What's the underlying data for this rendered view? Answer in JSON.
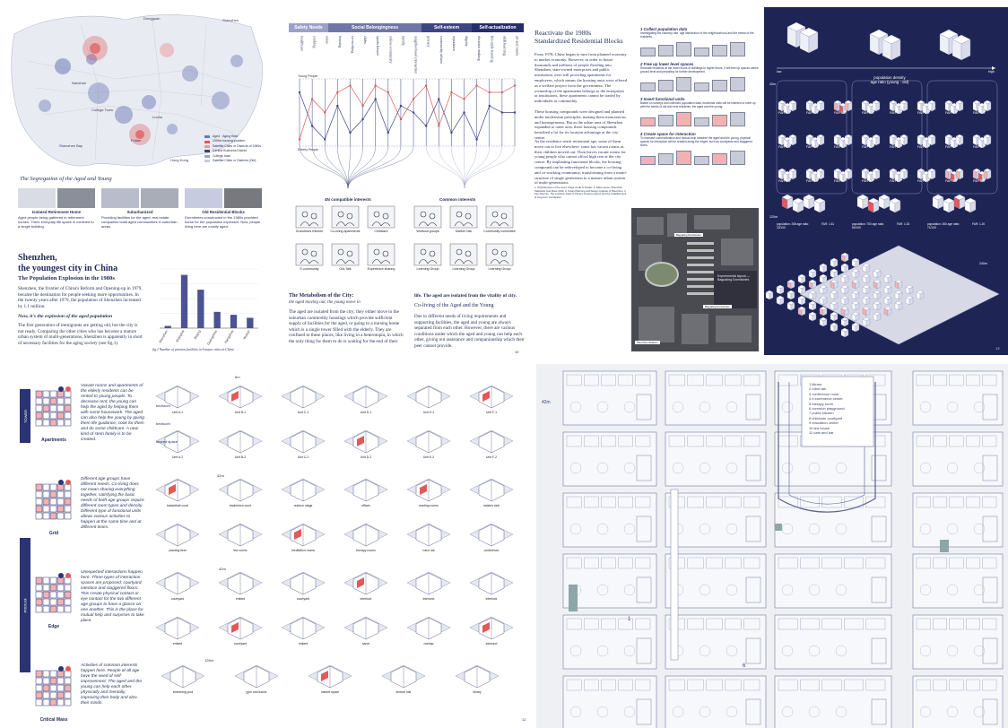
{
  "top_left": {
    "map_labels": [
      "Dongguan",
      "Shenzhen",
      "Nanshan",
      "Futian",
      "College Town",
      "Luohu",
      "Shenzhen Bay",
      "Hong Kong"
    ],
    "map_caption": "The Segregation of the Aged and Young",
    "legend": [
      {
        "label": "Aged · Aging Rate",
        "color": "#6e79b6"
      },
      {
        "label": "1990s housing problem",
        "color": "#e05a5a"
      },
      {
        "label": "Satellite Cities or Districts of 1980s",
        "color": "#e79a9a"
      },
      {
        "label": "Central Business District",
        "color": "#3a4273"
      },
      {
        "label": "College town",
        "color": "#9aa2c6"
      },
      {
        "label": "Satellite Cities or Districts (Old)",
        "color": "#c7cbe0"
      }
    ],
    "photo_groups": [
      {
        "title": "Isolated Retirement Home",
        "desc": "Aged people being gathered in retirement homes. There everyday life space is confined to a single building."
      },
      {
        "title": "Suburbanized",
        "desc": "Providing facilities for the aged, real estate companies build aged communities in suburban areas."
      },
      {
        "title": "Old Residential Blocks",
        "desc": "Dormitories constructed in the 1980s provided home for the population explosion. Now, people living here are mostly aged."
      }
    ],
    "section_title_1": "Shenzhen,",
    "section_title_2": "the youngest city in China",
    "sub_title": "The Population Explosion in the 1980s",
    "para1": "Shenzhen, the frontier of China's Reform and Opening-up in 1979, became the destination for people seeking more opportunities. In the twenty years after 1979, the population of Shenzhen increased by 1.1 million.",
    "now_line": "Now, it's the explosion of the aged population",
    "para2": "The first generation of immigrants are getting old, but the city is not ready. Comparing the other cities who has become a mature urban system of multi-generations, Shenzhen is apparently in short of necessary facilities for the aging society (see fig.1).",
    "fig_caption": "fig.1  Number of pension facilities in 6 major cities in China",
    "page_number": "9"
  },
  "bar_chart": {
    "type": "bar",
    "categories": [
      "Shenzhen",
      "Shanghai",
      "Beijing",
      "Guangzhou",
      "Hangzhou",
      "Wuhan"
    ],
    "values": [
      3,
      72,
      52,
      22,
      18,
      14
    ],
    "ylim": [
      0,
      80
    ]
  },
  "top_middle": {
    "needs": [
      "Safety Needs",
      "Social Belongingness",
      "Self-esteem",
      "Self-actualization"
    ],
    "columns": [
      "healthcare",
      "cooking",
      "noise",
      "housing",
      "co-working",
      "clubs",
      "sports leisure",
      "online community",
      "family",
      "neighborhood interaction",
      "privacy",
      "community affairs",
      "reputation",
      "dignity",
      "decision making",
      "life-style learning",
      "skill learning",
      "art and music"
    ],
    "young_label": "Young People",
    "elderly_label": "Elderly People",
    "compat_label": "4N compatible interests",
    "common_label": "Common interests",
    "left_icons": [
      "Grandma's Kitchen",
      "Co-living apartments",
      "Childcare",
      "E-community",
      "Old-Talk",
      "Experience sharing"
    ],
    "right_icons": [
      "Workout groups",
      "Market Talk",
      "Community committee",
      "Learning Group",
      "Learning Group",
      "Learning Group"
    ],
    "meta_title": "The Metabolism of the City:",
    "meta_sub": "the aged moving out, the young move in",
    "meta_body": "The aged are isolated from the city; they either move to the suburban commodity housings which provide sufficient supply of facilities for the aged, or going to a nursing home which is a single tower filled with the elderly. They are confined to these places, like living in a heterotopia, in which the only thing for them to do is waiting for the end of their",
    "life_head": "life. The aged are isolated from the vitality of city.",
    "coliving": "Co-living of the Aged and the Young",
    "life_body": "Due to different needs of living requirements and supporting facilities, the aged and young are always separated from each other. However, there are various conditions under which the aged and young can help each other, giving out assistance and companionship which their peer cannot provide.",
    "page_number": "10"
  },
  "top_right": {
    "title_1": "Reactivate the 1980s",
    "title_2": "Standardized Residential Blocks",
    "p1": "From 1978, China began to turn from planned economy to market economy. However, in order to house thousands and millions of people flooding into Shenzhen, state-owned enterprises and public institutions were still providing apartments for employees, which means the housing units were offered as a welfare project from the government. The ownership of the apartments belongs to the enterprises or institutions, these apartments cannot be traded by individuals as commodity.",
    "p2": "These housing compounds were designed and planned under modernism principles, making them monotonous and homogeneous. But as the urban area of Shenzhen expanded to outer area, these housing compounds benefited a lot for its location advantage at the city centre.",
    "p3": "As the residence reach retirement age, some of them move out to live elsewhere, some has vacant rooms as their children moved out. Then leaves vacant rooms for young people who cannot afford high rent at the city centre. By implanting functional blocks, the housing compound can be redeveloped to become a co-living and co-working community, transforming from a mono-structure of single generation to a mature urban system of multi-generations.",
    "footnotes": "1. Original photo of the cover image credit to Xiaolei. 2. Data source: Shenzhen Statistical Year Book 2016. 3. Urban Planning and Design Institute of Shenzhen. 4. Fan Xiaomin, The evolution track of China's housing system and the establishment of long-term mechanism.",
    "steps": [
      {
        "title": "1  Collect population data",
        "desc": "Investigating the vacancy rate, age distribution of the neighbourhood and the needs of the residents."
      },
      {
        "title": "2  Free up lower level spaces",
        "desc": "Relocate residents at the lower floors of buildings to higher floors. It will free up spaces above ground level and preparing for further development."
      },
      {
        "title": "3  Insert functional units",
        "desc": "Based on surveys and collected population data, functional units will be inserted to meet up with the needs of old and new residents, the aged and the young."
      },
      {
        "title": "4  Create space for interaction",
        "desc": "To increase communication and mutual help between the aged and the young, physical spaces for interaction will be created along the edges, such as courtyards and staggered floors."
      }
    ],
    "aerial_labels": [
      "Bagualing Dormitories",
      "Shenzhen Stadium",
      "Bagualing Dormitories"
    ],
    "aerial_note": "Experimental layout — Bagualing Dormitories",
    "page_number": "11"
  },
  "top_right_dark": {
    "density_low": "low",
    "density_high": "high",
    "density_label": "population density",
    "age_ratio": "age ratio (young : old)",
    "dim_42": "42m",
    "dim_120": "120m",
    "dim_240": "240m",
    "far_rows": [
      [
        "FAR 1.3",
        "FAR 1.3",
        "FAR 1.3",
        "FAR 1.3",
        "FAR 1.3",
        "FAR 1.3",
        "FAR 1.3",
        "FAR 1.3"
      ],
      [
        "FAR 1.1",
        "FAR 1.1",
        "FAR 0.7",
        "FAR 0.7",
        "FAR 0.7",
        "FAR 0.7",
        "FAR 0.7",
        "FAR 0.7"
      ],
      [
        "FAR 0.3",
        "FAR 0.3",
        "FAR 0.7",
        "FAR 0.7",
        "FAR 0.7",
        "FAR 0.7",
        "FAR 0.3",
        "FAR 0.3"
      ]
    ],
    "pop_labels": [
      "population: 258  age ratio: 22/100",
      "FAR: 1.61",
      "population: 700  age ratio: 50/100",
      "FAR: 1.33",
      "population: 260  age ratio: 71/100",
      "FAR: 1.20"
    ],
    "page_number": "13"
  },
  "bottom_left": {
    "categories": [
      {
        "name": "Apartments",
        "tag": "TOWER",
        "desc": "Vacant rooms and apartments of the elderly residents can be rented to young people. To decrease rent, the young can help the aged by helping them with some housework. The aged can also help the young by giving them life guidance, cook for them and do some childcare. A new kind of stem family is to be created."
      },
      {
        "name": "Grid",
        "tag": "",
        "desc": "Different age groups have different needs. Co-living does not mean sharing everything together, satisfying the basic needs of both age groups require different room types and density. Different type of functional units allows various activities to happen at the same time and at different times."
      },
      {
        "name": "Edge",
        "tag": "PODIUM",
        "desc": "Unexpected interactions happen here. Three types of interaction spaces are proposed: courtyard, interlace and staggered floors. This create physical contact or eye contact for the two different age groups to have a glance on one another. This is the place for mutual help and surprises to take place."
      },
      {
        "name": "Critical Mass",
        "tag": "",
        "desc": "Activities of common interests happen here. People at all age have the need of self-improvement. The aged and the young can help each other physically and mentally, improving their body and also their minds."
      }
    ],
    "apartment_units": [
      "Unit A-1",
      "Unit B-1",
      "Unit C-1",
      "Unit D-1",
      "Unit E-1",
      "Unit F-1",
      "Unit A-2",
      "Unit B-2",
      "Unit C-2",
      "Unit D-2",
      "Unit E-2",
      "Unit F-2"
    ],
    "apartment_notes": [
      "bedroom",
      "bedroom",
      "shared space"
    ],
    "dim_6m": "6m",
    "dim_42m": "42m",
    "dim_126m": "126m",
    "grid_units": [
      "basketball court",
      "badminton court",
      "outdoor stage",
      "offices",
      "reading rooms",
      "makers club",
      "planting field",
      "tea rooms",
      "meditation rooms",
      "therapy rooms",
      "robot lab",
      "conference"
    ],
    "edge_units": [
      "courtyard",
      "embed",
      "courtyard",
      "interlock",
      "intersect",
      "interlock",
      "embed",
      "courtyard",
      "embed",
      "carve",
      "overlap",
      "intersect"
    ],
    "mass_units": [
      "swimming pool",
      "gym and tracks",
      "market space",
      "lecture hall",
      "library"
    ],
    "page_number": "12"
  },
  "bottom_right": {
    "dim_label": "42m",
    "legend": [
      "1  library",
      "2  robot lab",
      "3  conference room",
      "4  e-commerce center",
      "5  therapy room",
      "6  common playground",
      "7  public kitchen",
      "8  childcare courtyard",
      "9  education center",
      "10  tea house",
      "11  cafe and bar"
    ],
    "plan_numbers": [
      "1",
      "6"
    ]
  },
  "colors": {
    "navy": "#1e2454",
    "accent": "#2b3375",
    "red": "#e05a5a",
    "pink": "#f2b2b2",
    "grey": "#c9ccd8"
  }
}
